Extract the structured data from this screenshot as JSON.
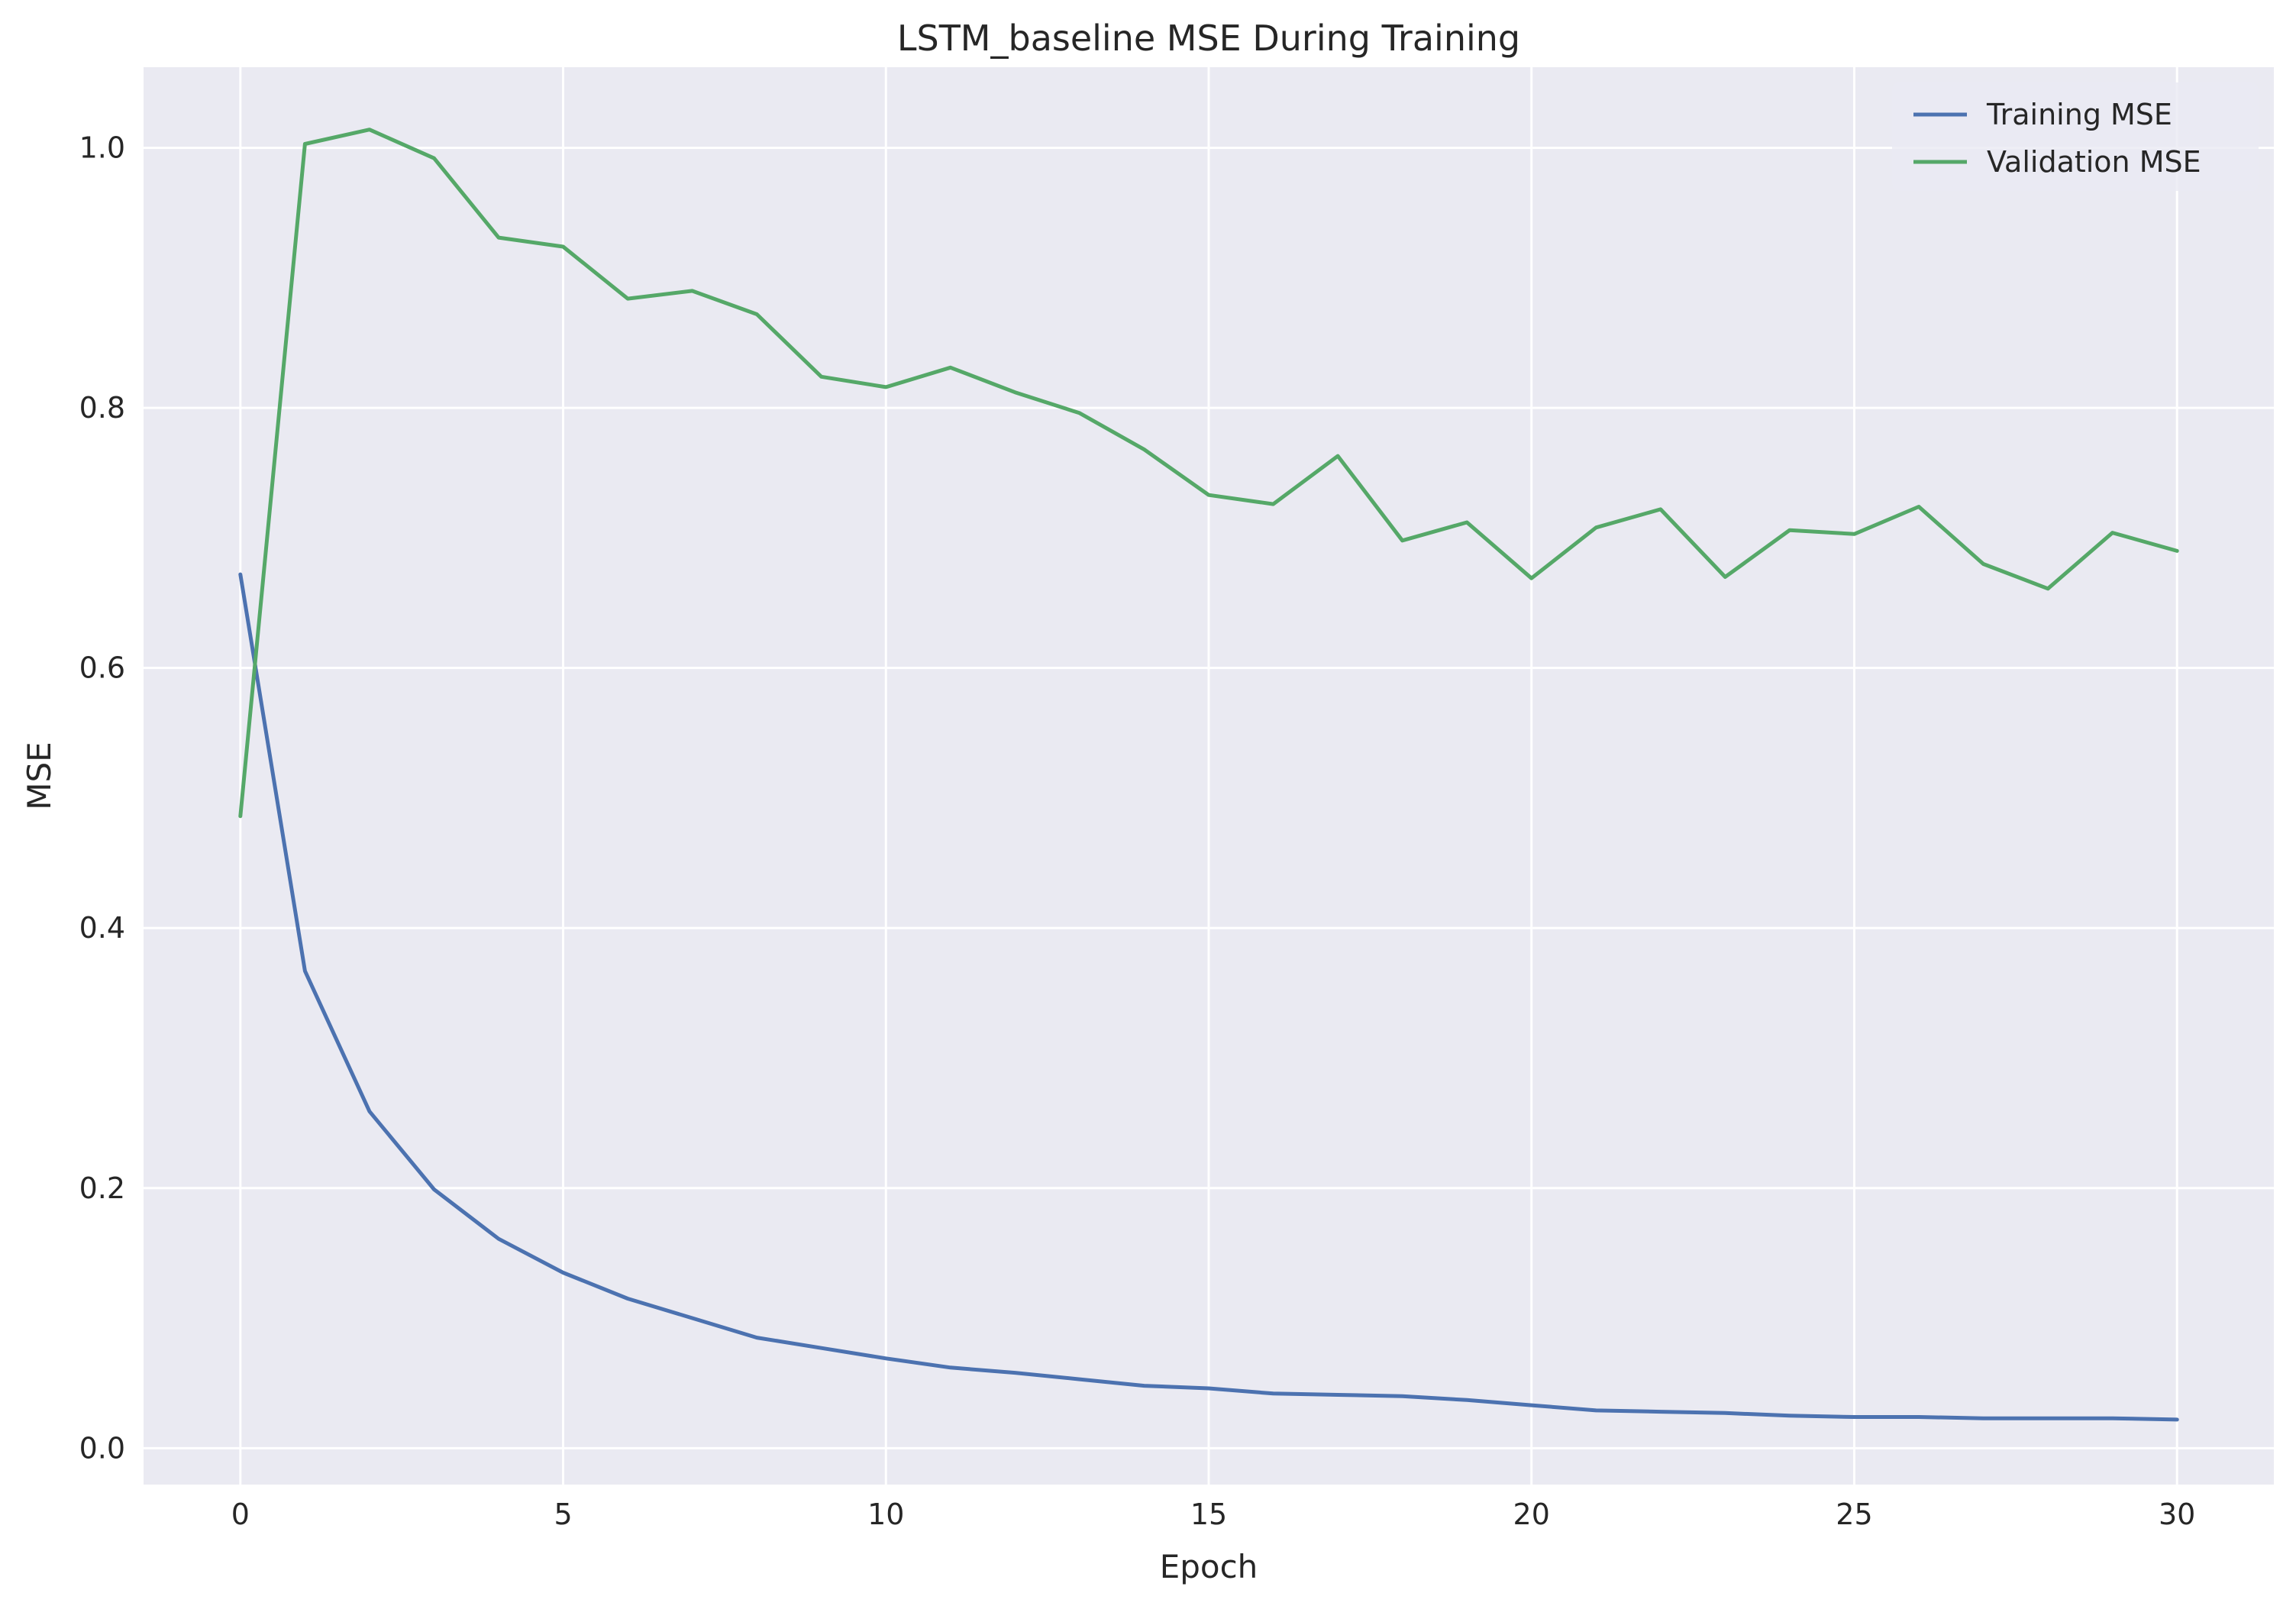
{
  "chart_data": {
    "type": "line",
    "title": "LSTM_baseline MSE During Training",
    "xlabel": "Epoch",
    "ylabel": "MSE",
    "xlim": [
      -1.5,
      31.5
    ],
    "ylim": [
      -0.028,
      1.062
    ],
    "xticks": [
      0,
      5,
      10,
      15,
      20,
      25,
      30
    ],
    "yticks": [
      0.0,
      0.2,
      0.4,
      0.6,
      0.8,
      1.0
    ],
    "xtick_labels": [
      "0",
      "5",
      "10",
      "15",
      "20",
      "25",
      "30"
    ],
    "ytick_labels": [
      "0.0",
      "0.2",
      "0.4",
      "0.6",
      "0.8",
      "1.0"
    ],
    "grid": true,
    "legend_position": "top-right",
    "background_color": "#eaeaf2",
    "x": [
      0,
      1,
      2,
      3,
      4,
      5,
      6,
      7,
      8,
      9,
      10,
      11,
      12,
      13,
      14,
      15,
      16,
      17,
      18,
      19,
      20,
      21,
      22,
      23,
      24,
      25,
      26,
      27,
      28,
      29,
      30
    ],
    "series": [
      {
        "name": "Training MSE",
        "color": "#4c72b0",
        "values": [
          0.672,
          0.367,
          0.259,
          0.199,
          0.161,
          0.135,
          0.115,
          0.1,
          0.085,
          0.077,
          0.069,
          0.062,
          0.058,
          0.053,
          0.048,
          0.046,
          0.042,
          0.041,
          0.04,
          0.037,
          0.033,
          0.029,
          0.028,
          0.027,
          0.025,
          0.024,
          0.024,
          0.023,
          0.023,
          0.023,
          0.022
        ]
      },
      {
        "name": "Validation MSE",
        "color": "#55a868",
        "values": [
          0.486,
          1.003,
          1.014,
          0.992,
          0.931,
          0.924,
          0.884,
          0.89,
          0.872,
          0.824,
          0.816,
          0.831,
          0.812,
          0.796,
          0.768,
          0.733,
          0.726,
          0.763,
          0.698,
          0.712,
          0.669,
          0.708,
          0.722,
          0.67,
          0.706,
          0.703,
          0.724,
          0.68,
          0.661,
          0.704,
          0.69
        ]
      }
    ]
  }
}
